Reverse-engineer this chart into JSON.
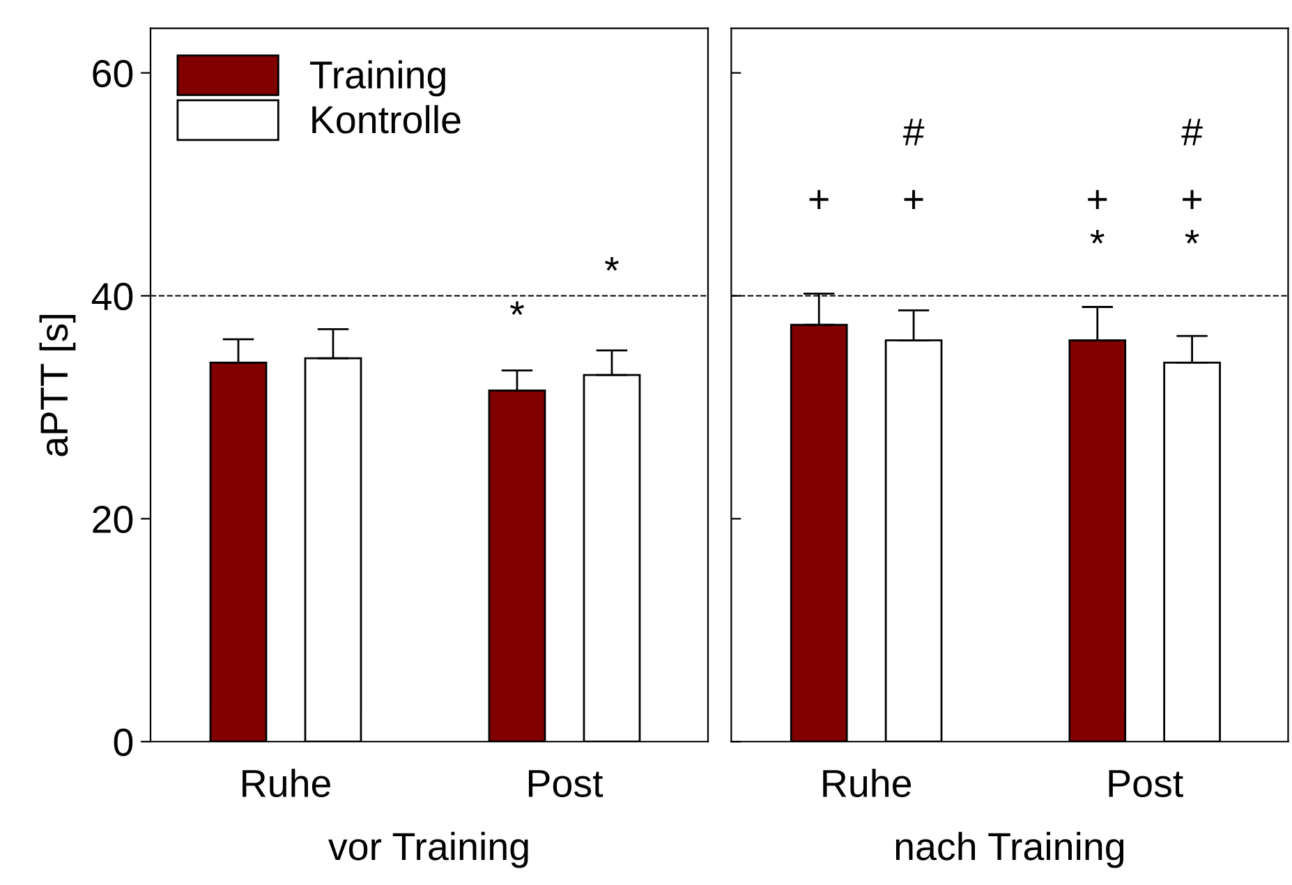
{
  "chart_data": [
    {
      "type": "bar",
      "categories": [
        "Ruhe",
        "Post"
      ],
      "xlabel": "vor Training",
      "ylabel": "aPTT [s]",
      "ylim": [
        0,
        64
      ],
      "yticks": [
        0,
        20,
        40,
        60
      ],
      "legend": "top left",
      "series": [
        {
          "name": "Training",
          "color": "#800000",
          "values": [
            34.0,
            31.5
          ],
          "errors": [
            [
              34.0,
              36.1
            ],
            [
              31.5,
              33.3
            ]
          ]
        },
        {
          "name": "Kontrolle",
          "color": "#ffffff",
          "values": [
            34.4,
            32.9
          ],
          "errors": [
            [
              34.4,
              37.0
            ],
            [
              32.9,
              35.1
            ]
          ]
        }
      ],
      "ref_lines": [
        {
          "axis": "y",
          "value": 40,
          "color": "#000000",
          "line_style": "dashed"
        }
      ],
      "annotations": [
        "*",
        "*"
      ]
    },
    {
      "type": "bar",
      "categories": [
        "Ruhe",
        "Post"
      ],
      "xlabel": "nach Training",
      "ylim": [
        0,
        64
      ],
      "yticks": [
        0,
        20,
        40,
        60
      ],
      "tick_labels": "x",
      "series": [
        {
          "color": "#800000",
          "values": [
            37.4,
            36.0
          ],
          "errors": [
            [
              37.4,
              40.2
            ],
            [
              36.0,
              39.0
            ]
          ]
        },
        {
          "color": "#ffffff",
          "values": [
            36.0,
            34.0
          ],
          "errors": [
            [
              36.0,
              38.7
            ],
            [
              34.0,
              36.4
            ]
          ]
        }
      ],
      "ref_lines": [
        {
          "axis": "y",
          "value": 40,
          "color": "#000000",
          "line_style": "dashed"
        }
      ],
      "annotations": [
        "+",
        "+",
        "#",
        "+",
        "*",
        "#",
        "+",
        "*"
      ]
    }
  ]
}
